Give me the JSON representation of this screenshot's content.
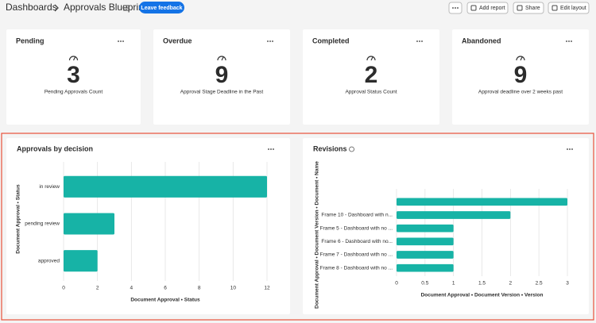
{
  "header": {
    "breadcrumb": "Dashboards",
    "title": "Approvals Blueprint",
    "feedback_button": "Leave feedback",
    "actions": [
      "Add report",
      "Share",
      "Edit layout"
    ]
  },
  "cards": [
    {
      "title": "Pending",
      "value": "3",
      "caption": "Pending Approvals Count"
    },
    {
      "title": "Overdue",
      "value": "9",
      "caption": "Approval Stage Deadline in the Past"
    },
    {
      "title": "Completed",
      "value": "2",
      "caption": "Approval Status Count"
    },
    {
      "title": "Abandoned",
      "value": "9",
      "caption": "Approval deadline over 2 weeks past"
    }
  ],
  "chart_data": [
    {
      "type": "bar",
      "orientation": "horizontal",
      "title": "Approvals by decision",
      "x_label": "Document Approval • Status",
      "y_label": "Document Approval • Status",
      "categories": [
        "in review",
        "pending review",
        "approved"
      ],
      "values": [
        12,
        3,
        2
      ],
      "color": "#17b3a6",
      "xlim": [
        0,
        12
      ],
      "xticks": [
        0,
        2,
        4,
        6,
        8,
        10,
        12
      ],
      "grid": true
    },
    {
      "type": "bar",
      "orientation": "horizontal",
      "title": "Revisions",
      "x_label": "Document Approval • Document Version • Version",
      "y_label": "Document Approval • Document Version • Document • Name",
      "categories": [
        null,
        "Frame 10 - Dashboard with n...",
        "Frame 5 - Dashboard with no ...",
        "Frame 6 - Dashboard with no...",
        "Frame 7 - Dashboard with no ...",
        "Frame 8 - Dashboard with no ..."
      ],
      "values": [
        3,
        2,
        1,
        1,
        1,
        1
      ],
      "color": "#17b3a6",
      "xlim": [
        0,
        3
      ],
      "xticks": [
        0,
        0.5,
        1,
        1.5,
        2,
        2.5,
        3
      ],
      "grid": true
    }
  ]
}
